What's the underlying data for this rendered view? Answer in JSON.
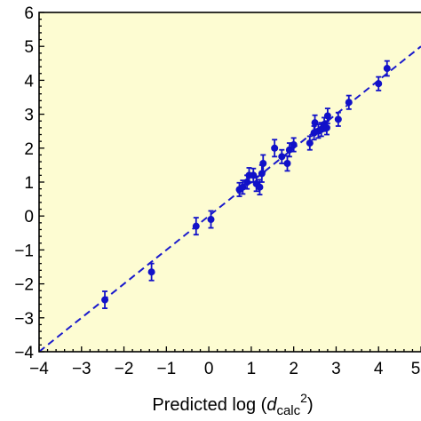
{
  "chart_data": {
    "type": "scatter",
    "title": "",
    "xlabel": {
      "main": "Predicted log (",
      "italic": "d",
      "sub": "calc",
      "sup": "2",
      "close": ")"
    },
    "ylabel": "",
    "xlim": [
      -4,
      5
    ],
    "ylim": [
      -4,
      6
    ],
    "x_ticks": [
      -4,
      -3,
      -2,
      -1,
      0,
      1,
      2,
      3,
      4,
      5
    ],
    "y_ticks": [
      -4,
      -3,
      -2,
      -1,
      0,
      1,
      2,
      3,
      4,
      5,
      6
    ],
    "background_color": "#fdfcd2",
    "marker_color": "#1111c8",
    "line_color": "#1a1acc",
    "fit_line": {
      "style": "dashed",
      "slope": 1.0,
      "intercept": 0.0
    },
    "points": [
      {
        "x": -2.45,
        "y": -2.47,
        "err": 0.25
      },
      {
        "x": -1.35,
        "y": -1.65,
        "err": 0.25
      },
      {
        "x": -0.3,
        "y": -0.3,
        "err": 0.25
      },
      {
        "x": 0.05,
        "y": -0.1,
        "err": 0.25
      },
      {
        "x": 0.72,
        "y": 0.78,
        "err": 0.2
      },
      {
        "x": 0.8,
        "y": 0.85,
        "err": 0.2
      },
      {
        "x": 0.9,
        "y": 1.0,
        "err": 0.2
      },
      {
        "x": 0.95,
        "y": 1.2,
        "err": 0.22
      },
      {
        "x": 1.05,
        "y": 1.2,
        "err": 0.2
      },
      {
        "x": 1.12,
        "y": 0.95,
        "err": 0.22
      },
      {
        "x": 1.2,
        "y": 0.85,
        "err": 0.22
      },
      {
        "x": 1.25,
        "y": 1.25,
        "err": 0.25
      },
      {
        "x": 1.28,
        "y": 1.55,
        "err": 0.25
      },
      {
        "x": 1.55,
        "y": 2.0,
        "err": 0.25
      },
      {
        "x": 1.72,
        "y": 1.75,
        "err": 0.2
      },
      {
        "x": 1.85,
        "y": 1.55,
        "err": 0.22
      },
      {
        "x": 1.9,
        "y": 1.95,
        "err": 0.2
      },
      {
        "x": 2.0,
        "y": 2.1,
        "err": 0.2
      },
      {
        "x": 2.38,
        "y": 2.15,
        "err": 0.2
      },
      {
        "x": 2.48,
        "y": 2.45,
        "err": 0.2
      },
      {
        "x": 2.5,
        "y": 2.75,
        "err": 0.22
      },
      {
        "x": 2.58,
        "y": 2.5,
        "err": 0.2
      },
      {
        "x": 2.65,
        "y": 2.55,
        "err": 0.2
      },
      {
        "x": 2.72,
        "y": 2.7,
        "err": 0.2
      },
      {
        "x": 2.78,
        "y": 2.6,
        "err": 0.2
      },
      {
        "x": 2.8,
        "y": 2.95,
        "err": 0.22
      },
      {
        "x": 3.05,
        "y": 2.85,
        "err": 0.2
      },
      {
        "x": 3.3,
        "y": 3.35,
        "err": 0.2
      },
      {
        "x": 4.0,
        "y": 3.9,
        "err": 0.2
      },
      {
        "x": 4.2,
        "y": 4.35,
        "err": 0.22
      }
    ]
  }
}
